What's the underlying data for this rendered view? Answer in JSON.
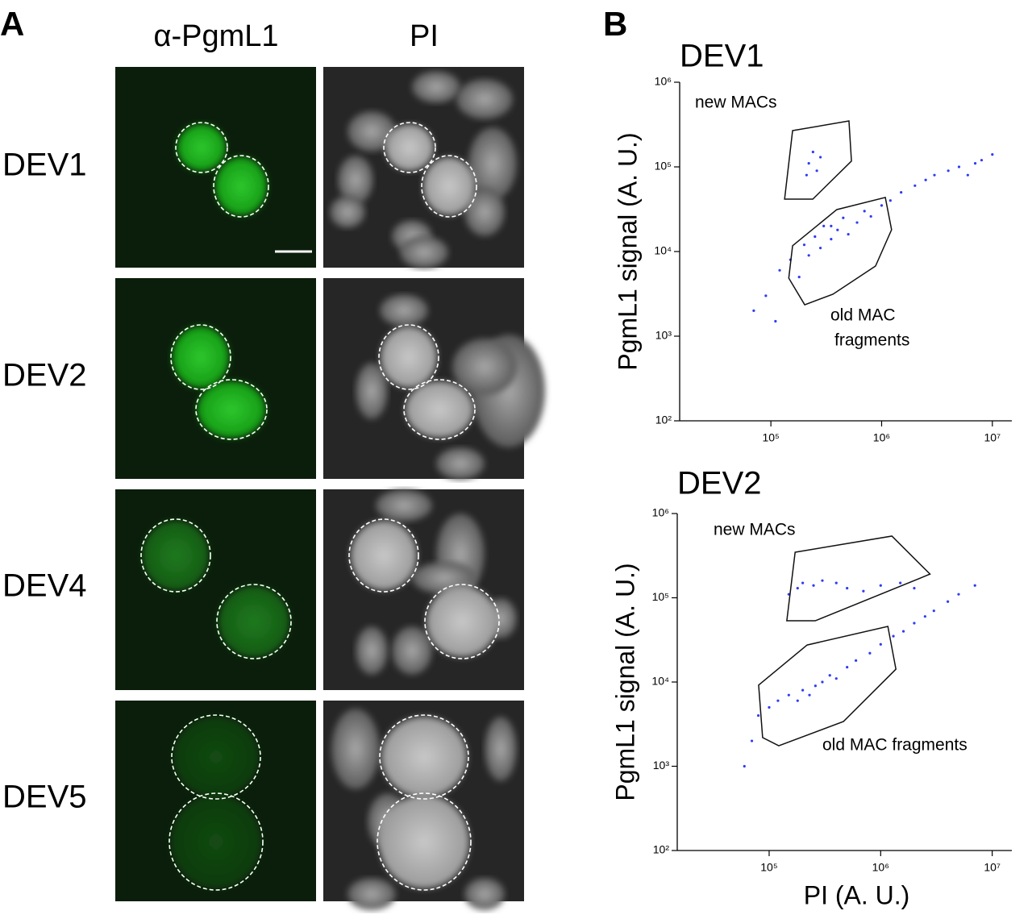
{
  "panel_a": {
    "label": "A",
    "columns": [
      "α-PgmL1",
      "PI"
    ],
    "rows": [
      "DEV1",
      "DEV2",
      "DEV4",
      "DEV5"
    ]
  },
  "panel_b_label": "B",
  "chart_data": [
    {
      "type": "scatter",
      "title": "DEV1",
      "ylabel": "PgmL1 signal (A. U.)",
      "log_x": true,
      "log_y": true,
      "color": "#2f3cf5",
      "xlim": [
        15000,
        15000000
      ],
      "ylim": [
        100,
        1000000
      ],
      "xticks": [
        {
          "value": 100000,
          "label": "10⁵"
        },
        {
          "value": 1000000,
          "label": "10⁶"
        },
        {
          "value": 10000000,
          "label": "10⁷"
        }
      ],
      "yticks": [
        {
          "value": 100,
          "label": "10²"
        },
        {
          "value": 1000,
          "label": "10³"
        },
        {
          "value": 10000,
          "label": "10⁴"
        },
        {
          "value": 100000,
          "label": "10⁵"
        },
        {
          "value": 1000000,
          "label": "10⁶"
        }
      ],
      "x": [
        120000.0,
        150000.0,
        180000.0,
        200000.0,
        220000.0,
        250000.0,
        280000.0,
        300000.0,
        350000.0,
        400000.0,
        450000.0,
        500000.0,
        600000.0,
        700000.0,
        800000.0,
        1000000.0,
        1200000.0,
        1500000.0,
        2000000.0,
        2500000.0,
        3000000.0,
        4000000.0,
        5000000.0,
        6000000.0,
        7000000.0,
        8000000.0,
        10000000.0,
        90000.0,
        70000.0,
        110000.0,
        220000.0,
        240000.0,
        260000.0,
        210000.0,
        280000.0,
        350000.0
      ],
      "y": [
        6000.0,
        8000.0,
        5000.0,
        12000.0,
        9000.0,
        15000.0,
        11000.0,
        20000.0,
        14000.0,
        18000.0,
        25000.0,
        16000.0,
        22000.0,
        30000.0,
        26000.0,
        35000.0,
        40000.0,
        50000.0,
        60000.0,
        70000.0,
        80000.0,
        90000.0,
        100000.0,
        80000.0,
        110000.0,
        120000.0,
        140000.0,
        3000.0,
        2000.0,
        1500.0,
        110000.0,
        150000.0,
        90000.0,
        80000.0,
        130000.0,
        20000.0
      ],
      "gates": [
        {
          "label": [
            "new MACs"
          ],
          "points": [
            [
              157000.0,
              268000.0
            ],
            [
              507000.0,
              349000.0
            ],
            [
              534000.0,
              117000.0
            ],
            [
              239000.0,
              41600.0
            ],
            [
              133000.0,
              41600.0
            ]
          ]
        },
        {
          "label": [
            "old MAC",
            "fragments"
          ],
          "points": [
            [
              157000.0,
              11700.0
            ],
            [
              394000.0,
              31300.0
            ],
            [
              1080000.0,
              43500.0
            ],
            [
              1230000.0,
              18100.0
            ],
            [
              881000.0,
              6740.0
            ],
            [
              363000.0,
              3130.0
            ],
            [
              202000.0,
              2350.0
            ],
            [
              145000.0,
              4850.0
            ]
          ]
        }
      ]
    },
    {
      "type": "scatter",
      "title": "DEV2",
      "ylabel": "PgmL1 signal (A. U.)",
      "xlabel": "PI (A. U.)",
      "log_x": true,
      "log_y": true,
      "color": "#2f3cf5",
      "xlim": [
        15000,
        15000000
      ],
      "ylim": [
        100,
        1000000
      ],
      "xticks": [
        {
          "value": 100000,
          "label": "10⁵"
        },
        {
          "value": 1000000,
          "label": "10⁶"
        },
        {
          "value": 10000000,
          "label": "10⁷"
        }
      ],
      "yticks": [
        {
          "value": 100,
          "label": "10²"
        },
        {
          "value": 1000,
          "label": "10³"
        },
        {
          "value": 10000,
          "label": "10⁴"
        },
        {
          "value": 100000,
          "label": "10⁵"
        },
        {
          "value": 1000000,
          "label": "10⁶"
        }
      ],
      "x": [
        80000.0,
        100000.0,
        120000.0,
        150000.0,
        180000.0,
        200000.0,
        230000.0,
        260000.0,
        300000.0,
        350000.0,
        400000.0,
        500000.0,
        600000.0,
        800000.0,
        1000000.0,
        1300000.0,
        1600000.0,
        2000000.0,
        2500000.0,
        3000000.0,
        4000000.0,
        5000000.0,
        7000000.0,
        60000.0,
        70000.0,
        150000.0,
        180000.0,
        200000.0,
        250000.0,
        300000.0,
        400000.0,
        500000.0,
        700000.0,
        1000000.0,
        1500000.0,
        2000000.0
      ],
      "y": [
        4000.0,
        5000.0,
        6000.0,
        7000.0,
        6000.0,
        8000.0,
        7000.0,
        9000.0,
        10000.0,
        12000.0,
        11000.0,
        15000.0,
        18000.0,
        22000.0,
        28000.0,
        35000.0,
        40000.0,
        50000.0,
        60000.0,
        70000.0,
        90000.0,
        110000.0,
        140000.0,
        1000.0,
        2000.0,
        110000.0,
        130000.0,
        150000.0,
        140000.0,
        160000.0,
        150000.0,
        130000.0,
        120000.0,
        140000.0,
        150000.0,
        130000.0
      ],
      "gates": [
        {
          "label": [
            "new MACs"
          ],
          "points": [
            [
              171000.0,
              347000.0
            ],
            [
              1260000.0,
              540000.0
            ],
            [
              2770000.0,
              191000.0
            ],
            [
              259000.0,
              53300.0
            ],
            [
              144000.0,
              53300.0
            ]
          ]
        },
        {
          "label": [
            "old MAC fragments"
          ],
          "points": [
            [
              80500.0,
              9200.0
            ],
            [
              219000.0,
              27500.0
            ],
            [
              1160000.0,
              45700.0
            ],
            [
              1370000.0,
              14200.0
            ],
            [
              464000.0,
              3400.0
            ],
            [
              122000.0,
              1750.0
            ],
            [
              87400.0,
              2190.0
            ]
          ]
        }
      ]
    }
  ]
}
